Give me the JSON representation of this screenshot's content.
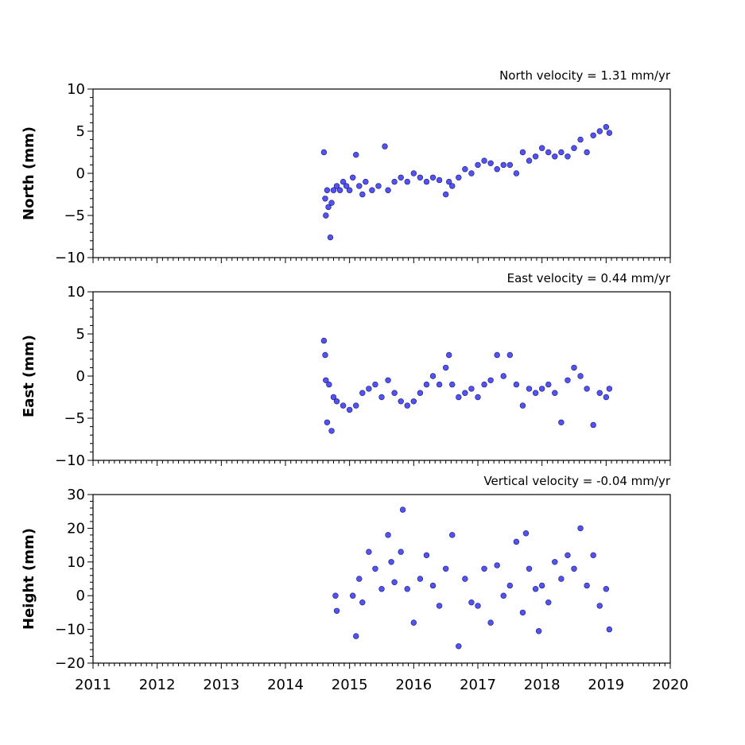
{
  "chart_data": [
    {
      "type": "scatter",
      "title": "North velocity = 1.31 mm/yr",
      "ylabel": "North (mm)",
      "xlim": [
        2011,
        2020
      ],
      "ylim": [
        -10,
        10
      ],
      "yticks": [
        "−10",
        "−5",
        "0",
        "5",
        "10"
      ],
      "xtick_labels_shown": false,
      "marker_color": "#5252f5",
      "series": [
        {
          "x": [
            2014.6,
            2014.62,
            2014.63,
            2014.65,
            2014.67,
            2014.7,
            2014.72,
            2014.75,
            2014.8,
            2014.85,
            2014.9,
            2014.95,
            2015.0,
            2015.05,
            2015.1,
            2015.15,
            2015.2,
            2015.25,
            2015.35,
            2015.45,
            2015.55,
            2015.6,
            2015.7,
            2015.8,
            2015.9,
            2016.0,
            2016.1,
            2016.2,
            2016.3,
            2016.4,
            2016.5,
            2016.55,
            2016.6,
            2016.7,
            2016.8,
            2016.9,
            2017.0,
            2017.1,
            2017.2,
            2017.3,
            2017.4,
            2017.5,
            2017.6,
            2017.7,
            2017.8,
            2017.9,
            2018.0,
            2018.1,
            2018.2,
            2018.3,
            2018.4,
            2018.5,
            2018.6,
            2018.7,
            2018.8,
            2018.9,
            2019.0,
            2019.05
          ],
          "y": [
            2.5,
            -3.0,
            -5.0,
            -2.0,
            -4.0,
            -7.6,
            -3.5,
            -2.0,
            -1.5,
            -2.0,
            -1.0,
            -1.5,
            -2.0,
            -0.5,
            2.2,
            -1.5,
            -2.5,
            -1.0,
            -2.0,
            -1.5,
            3.2,
            -2.0,
            -1.0,
            -0.5,
            -1.0,
            0.0,
            -0.5,
            -1.0,
            -0.5,
            -0.8,
            -2.5,
            -1.0,
            -1.5,
            -0.5,
            0.5,
            0.0,
            1.0,
            1.5,
            1.2,
            0.5,
            1.0,
            1.0,
            0.0,
            2.5,
            1.5,
            2.0,
            3.0,
            2.5,
            2.0,
            2.5,
            2.0,
            3.0,
            4.0,
            2.5,
            4.5,
            5.0,
            5.5,
            4.8
          ]
        }
      ]
    },
    {
      "type": "scatter",
      "title": "East velocity = 0.44 mm/yr",
      "ylabel": "East (mm)",
      "xlim": [
        2011,
        2020
      ],
      "ylim": [
        -10,
        10
      ],
      "yticks": [
        "−10",
        "−5",
        "0",
        "5",
        "10"
      ],
      "xtick_labels_shown": false,
      "marker_color": "#5252f5",
      "series": [
        {
          "x": [
            2014.6,
            2014.62,
            2014.63,
            2014.65,
            2014.68,
            2014.72,
            2014.75,
            2014.8,
            2014.9,
            2015.0,
            2015.1,
            2015.2,
            2015.3,
            2015.4,
            2015.5,
            2015.6,
            2015.7,
            2015.8,
            2015.9,
            2016.0,
            2016.1,
            2016.2,
            2016.3,
            2016.4,
            2016.5,
            2016.55,
            2016.6,
            2016.7,
            2016.8,
            2016.9,
            2017.0,
            2017.1,
            2017.2,
            2017.3,
            2017.4,
            2017.5,
            2017.6,
            2017.7,
            2017.8,
            2017.9,
            2018.0,
            2018.1,
            2018.2,
            2018.3,
            2018.4,
            2018.5,
            2018.6,
            2018.7,
            2018.8,
            2018.9,
            2019.0,
            2019.05
          ],
          "y": [
            4.2,
            2.5,
            -0.5,
            -5.5,
            -1.0,
            -6.5,
            -2.5,
            -3.0,
            -3.5,
            -4.0,
            -3.5,
            -2.0,
            -1.5,
            -1.0,
            -2.5,
            -0.5,
            -2.0,
            -3.0,
            -3.5,
            -3.0,
            -2.0,
            -1.0,
            0.0,
            -1.0,
            1.0,
            2.5,
            -1.0,
            -2.5,
            -2.0,
            -1.5,
            -2.5,
            -1.0,
            -0.5,
            2.5,
            0.0,
            2.5,
            -1.0,
            -3.5,
            -1.5,
            -2.0,
            -1.5,
            -1.0,
            -2.0,
            -5.5,
            -0.5,
            1.0,
            0.0,
            -1.5,
            -5.8,
            -2.0,
            -2.5,
            -1.5
          ]
        }
      ]
    },
    {
      "type": "scatter",
      "title": "Vertical velocity = -0.04 mm/yr",
      "ylabel": "Height (mm)",
      "xlim": [
        2011,
        2020
      ],
      "ylim": [
        -20,
        30
      ],
      "yticks": [
        "−20",
        "−10",
        "0",
        "10",
        "20",
        "30"
      ],
      "xticks": [
        "2011",
        "2012",
        "2013",
        "2014",
        "2015",
        "2016",
        "2017",
        "2018",
        "2019",
        "2020"
      ],
      "marker_color": "#5252f5",
      "series": [
        {
          "x": [
            2014.78,
            2014.8,
            2015.05,
            2015.1,
            2015.15,
            2015.2,
            2015.3,
            2015.4,
            2015.5,
            2015.6,
            2015.65,
            2015.7,
            2015.8,
            2015.83,
            2015.9,
            2016.0,
            2016.1,
            2016.2,
            2016.3,
            2016.4,
            2016.5,
            2016.6,
            2016.7,
            2016.8,
            2016.9,
            2017.0,
            2017.1,
            2017.2,
            2017.3,
            2017.4,
            2017.5,
            2017.6,
            2017.7,
            2017.75,
            2017.8,
            2017.9,
            2017.95,
            2018.0,
            2018.1,
            2018.2,
            2018.3,
            2018.4,
            2018.5,
            2018.6,
            2018.7,
            2018.8,
            2018.9,
            2019.0,
            2019.05
          ],
          "y": [
            0.0,
            -4.5,
            0.0,
            -12.0,
            5.0,
            -2.0,
            13.0,
            8.0,
            2.0,
            18.0,
            10.0,
            4.0,
            13.0,
            25.5,
            2.0,
            -8.0,
            5.0,
            12.0,
            3.0,
            -3.0,
            8.0,
            18.0,
            -15.0,
            5.0,
            -2.0,
            -3.0,
            8.0,
            -8.0,
            9.0,
            0.0,
            3.0,
            16.0,
            -5.0,
            18.5,
            8.0,
            2.0,
            -10.5,
            3.0,
            -2.0,
            10.0,
            5.0,
            12.0,
            8.0,
            20.0,
            3.0,
            12.0,
            -3.0,
            2.0,
            -10.0
          ]
        }
      ]
    }
  ]
}
